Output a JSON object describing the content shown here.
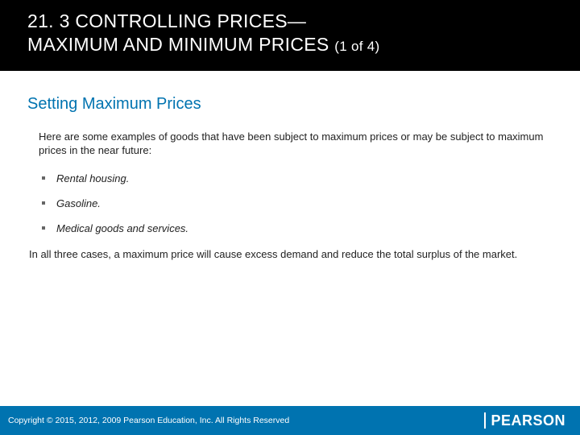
{
  "header": {
    "line1": "21. 3 CONTROLLING PRICES—",
    "line2_main": "MAXIMUM AND MINIMUM PRICES ",
    "line2_sub": "(1 of 4)"
  },
  "section": {
    "heading": "Setting Maximum Prices",
    "intro": "Here are some examples of goods that have been subject to maximum prices or may be subject to maximum prices in the near future:",
    "bullets": [
      "Rental housing.",
      "Gasoline.",
      "Medical goods and services."
    ],
    "conclusion": "In all three cases, a maximum price will cause excess demand and reduce the total surplus of the market."
  },
  "footer": {
    "copyright": "Copyright © 2015, 2012, 2009 Pearson Education, Inc. All Rights Reserved",
    "logo": "PEARSON"
  },
  "colors": {
    "header_bg": "#000000",
    "accent": "#0073b0",
    "text": "#222222",
    "footer_bg": "#0073b0",
    "white": "#ffffff"
  }
}
